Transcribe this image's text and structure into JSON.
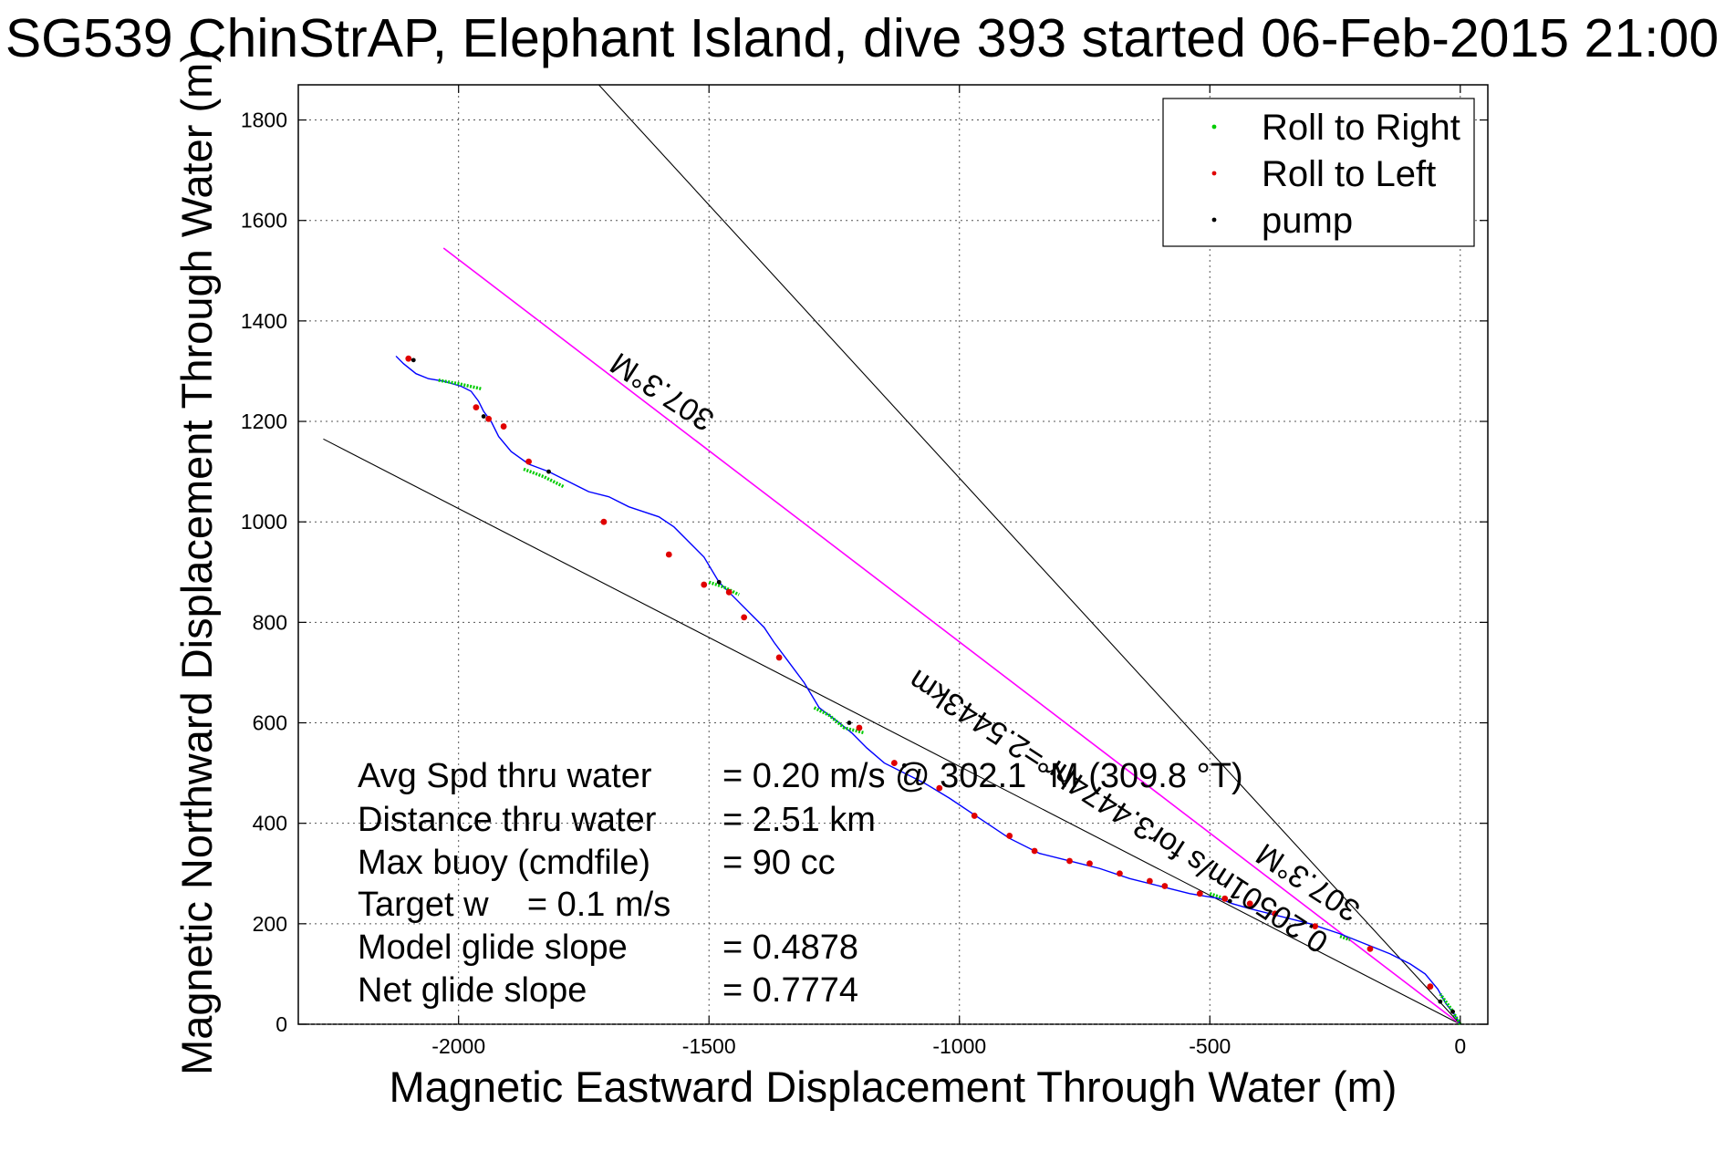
{
  "chart_data": {
    "type": "scatter",
    "title": "SG539 ChinStrAP, Elephant Island, dive 393 started 06-Feb-2015 21:00",
    "xlabel": "Magnetic Eastward Displacement Through Water (m)",
    "ylabel": "Magnetic Northward Displacement Through Water (m)",
    "xlim": [
      -2320,
      55
    ],
    "ylim": [
      0,
      1870
    ],
    "x_ticks": [
      -2000,
      -1500,
      -1000,
      -500,
      0
    ],
    "y_ticks": [
      0,
      200,
      400,
      600,
      800,
      1000,
      1200,
      1400,
      1600,
      1800
    ],
    "grid": true,
    "legend_position": "top-right",
    "legend": [
      {
        "label": "Roll to Right",
        "color": "#00cc00"
      },
      {
        "label": "Roll to Left",
        "color": "#e00000"
      },
      {
        "label": "pump",
        "color": "#000000"
      }
    ],
    "colors": {
      "track": "#0000ff",
      "roll_right": "#00cc00",
      "roll_left": "#e00000",
      "pump": "#000000",
      "avg_heading": "#ff00ff",
      "guide": "#000000"
    },
    "track": {
      "name": "",
      "x": [
        0,
        -12,
        -28,
        -45,
        -70,
        -100,
        -140,
        -190,
        -240,
        -300,
        -360,
        -420,
        -455,
        -480,
        -540,
        -600,
        -660,
        -720,
        -780,
        -840,
        -900,
        -960,
        -1020,
        -1070,
        -1110,
        -1150,
        -1185,
        -1215,
        -1240,
        -1280,
        -1310,
        -1340,
        -1370,
        -1390,
        -1420,
        -1450,
        -1480,
        -1510,
        -1540,
        -1570,
        -1600,
        -1630,
        -1660,
        -1700,
        -1740,
        -1780,
        -1820,
        -1860,
        -1895,
        -1920,
        -1935,
        -1950,
        -1960,
        -1975,
        -1995,
        -2030,
        -2060,
        -2085,
        -2110,
        -2125
      ],
      "y": [
        0,
        20,
        40,
        70,
        100,
        120,
        140,
        160,
        180,
        200,
        215,
        230,
        240,
        250,
        260,
        275,
        290,
        310,
        325,
        340,
        370,
        410,
        450,
        480,
        500,
        520,
        550,
        580,
        600,
        630,
        680,
        720,
        760,
        790,
        820,
        850,
        880,
        930,
        960,
        990,
        1010,
        1020,
        1030,
        1050,
        1060,
        1080,
        1100,
        1115,
        1140,
        1170,
        1200,
        1220,
        1240,
        1260,
        1270,
        1280,
        1285,
        1295,
        1315,
        1330
      ]
    },
    "roll_right_segments": [
      [
        [
          0,
          0
        ],
        [
          -18,
          30
        ],
        [
          -40,
          60
        ]
      ],
      [
        [
          -2040,
          1282
        ],
        [
          -2000,
          1275
        ],
        [
          -1955,
          1265
        ]
      ],
      [
        [
          -1870,
          1105
        ],
        [
          -1830,
          1090
        ],
        [
          -1790,
          1070
        ]
      ],
      [
        [
          -1290,
          630
        ],
        [
          -1260,
          615
        ],
        [
          -1230,
          590
        ],
        [
          -1190,
          580
        ]
      ],
      [
        [
          -1500,
          880
        ],
        [
          -1470,
          870
        ],
        [
          -1440,
          855
        ]
      ],
      [
        [
          -500,
          260
        ],
        [
          -470,
          250
        ]
      ],
      [
        [
          -240,
          175
        ],
        [
          -220,
          168
        ]
      ]
    ],
    "roll_left_points": [
      [
        -2100,
        1325
      ],
      [
        -1965,
        1228
      ],
      [
        -1940,
        1205
      ],
      [
        -1910,
        1190
      ],
      [
        -1860,
        1120
      ],
      [
        -1710,
        1000
      ],
      [
        -1580,
        935
      ],
      [
        -1510,
        875
      ],
      [
        -1460,
        860
      ],
      [
        -1430,
        810
      ],
      [
        -1360,
        730
      ],
      [
        -1200,
        590
      ],
      [
        -1130,
        520
      ],
      [
        -1040,
        470
      ],
      [
        -970,
        415
      ],
      [
        -900,
        375
      ],
      [
        -850,
        345
      ],
      [
        -780,
        325
      ],
      [
        -740,
        320
      ],
      [
        -680,
        300
      ],
      [
        -620,
        285
      ],
      [
        -590,
        275
      ],
      [
        -520,
        260
      ],
      [
        -470,
        250
      ],
      [
        -420,
        240
      ],
      [
        -370,
        220
      ],
      [
        -290,
        195
      ],
      [
        -180,
        150
      ],
      [
        -60,
        75
      ]
    ],
    "pump_points": [
      [
        -2090,
        1322
      ],
      [
        -1950,
        1210
      ],
      [
        -1820,
        1100
      ],
      [
        -1480,
        880
      ],
      [
        -1220,
        600
      ],
      [
        -1110,
        515
      ],
      [
        -460,
        245
      ],
      [
        -40,
        45
      ],
      [
        -15,
        25
      ]
    ],
    "lines": [
      {
        "x": [
          -2270,
          0
        ],
        "y": [
          1165,
          0
        ],
        "color": "#000000"
      },
      {
        "x": [
          -2030,
          0
        ],
        "y": [
          1545,
          0
        ],
        "color": "#ff00ff"
      },
      {
        "x": [
          -1720,
          0
        ],
        "y": [
          1870,
          0
        ],
        "color": "#000000"
      }
    ],
    "line_labels": [
      {
        "text": "307.3°M",
        "x": -1700,
        "y": 1290
      },
      {
        "text": "0.20501m/s for3.4474hr =2.5443km",
        "x": -500,
        "y": 520
      },
      {
        "text": "307.3°M",
        "x": -190,
        "y": 250
      }
    ],
    "annotations": [
      {
        "label": "Avg Spd thru water",
        "value": "=  0.20 m/s @ 302.1 °M (309.8 °T)"
      },
      {
        "label": "Distance thru water",
        "value": "=  2.51 km"
      },
      {
        "label": "Max buoy (cmdfile)",
        "value": "= 90 cc"
      },
      {
        "label": "Target w    = 0.1 m/s",
        "value": ""
      },
      {
        "label": "Model glide slope",
        "value": "= 0.4878"
      },
      {
        "label": "Net glide slope",
        "value": "= 0.7774"
      }
    ]
  }
}
